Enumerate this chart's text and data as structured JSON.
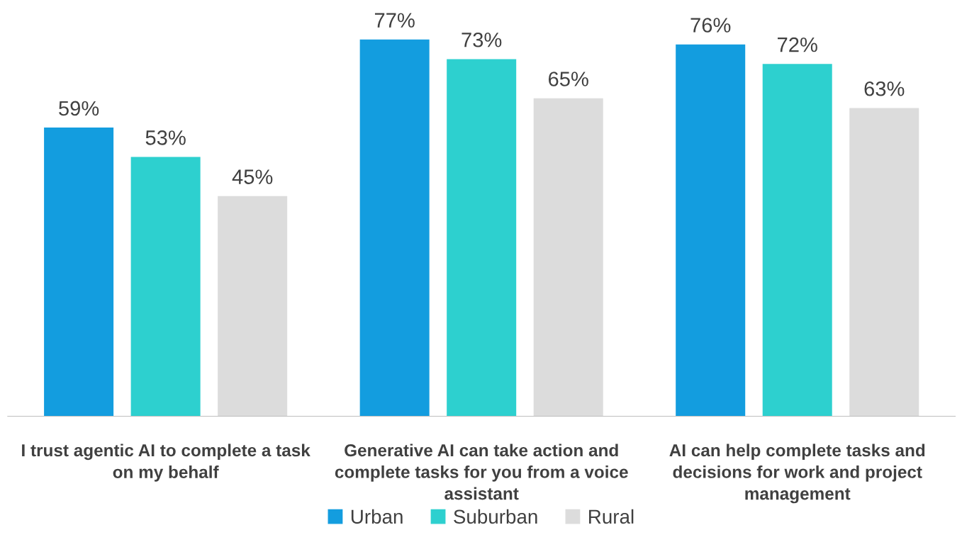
{
  "chart_data": {
    "type": "bar",
    "categories": [
      "I trust agentic AI to complete a task\non my behalf",
      "Generative AI can take action and\ncomplete tasks for you from a voice\nassistant",
      "AI can help complete tasks and\ndecisions for work and project\nmanagement"
    ],
    "series": [
      {
        "name": "Urban",
        "color": "#139ddf",
        "values": [
          59,
          77,
          76
        ],
        "value_labels": [
          "59%",
          "77%",
          "76%"
        ]
      },
      {
        "name": "Suburban",
        "color": "#2dd0cf",
        "values": [
          53,
          73,
          72
        ],
        "value_labels": [
          "53%",
          "73%",
          "72%"
        ]
      },
      {
        "name": "Rural",
        "color": "#dcdcdc",
        "values": [
          45,
          65,
          63
        ],
        "value_labels": [
          "45%",
          "65%",
          "63%"
        ]
      }
    ],
    "legend": "bottom",
    "grid": false
  }
}
